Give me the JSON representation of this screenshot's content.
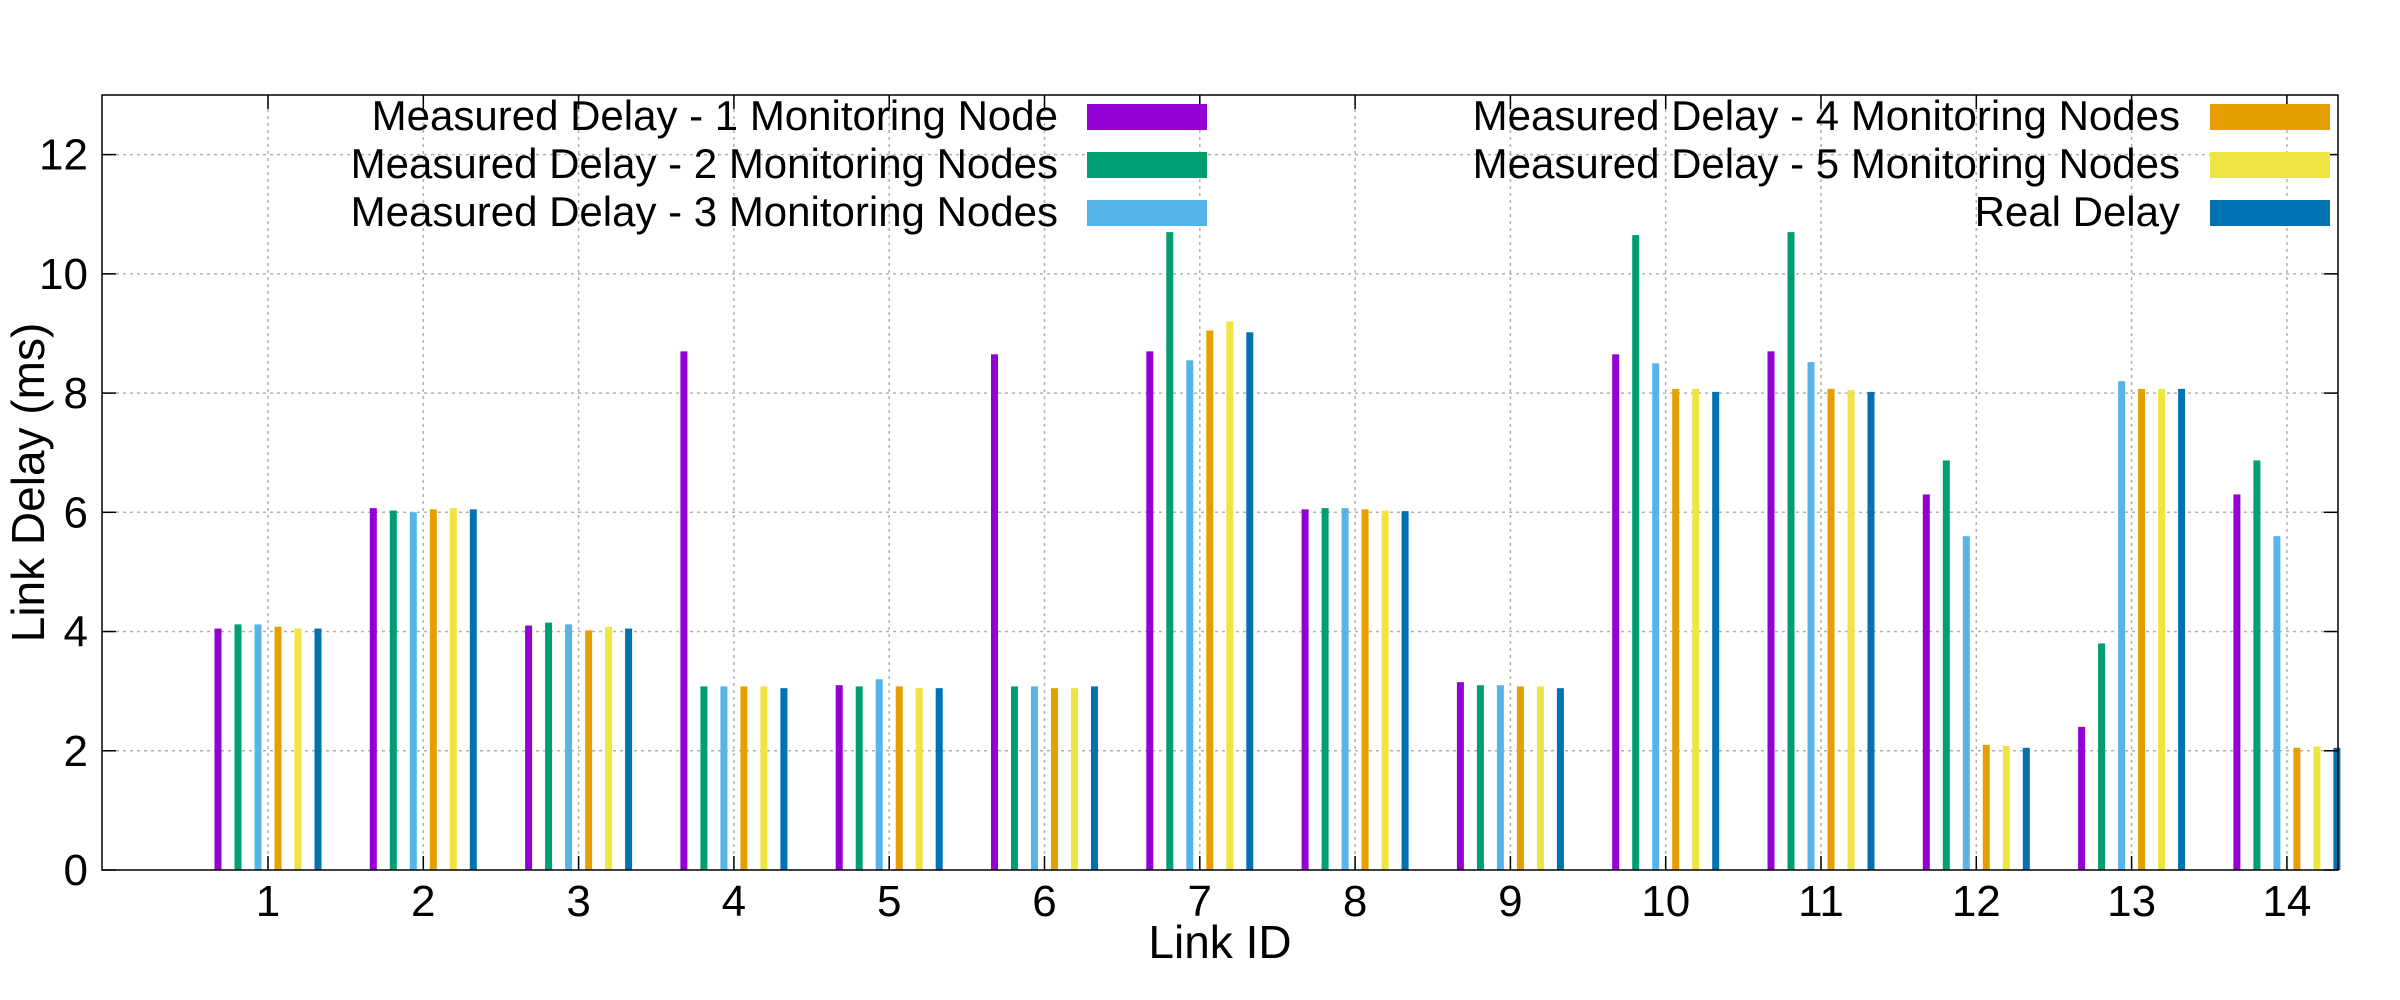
{
  "chart_data": {
    "type": "bar",
    "title": "",
    "xlabel": "Link ID",
    "ylabel": "Link Delay (ms)",
    "ylim": [
      0,
      13
    ],
    "yticks": [
      0,
      2,
      4,
      6,
      8,
      10,
      12
    ],
    "grid": true,
    "legend_placement": "top",
    "categories": [
      "1",
      "2",
      "3",
      "4",
      "5",
      "6",
      "7",
      "8",
      "9",
      "10",
      "11",
      "12",
      "13",
      "14"
    ],
    "series": [
      {
        "name": "Measured Delay - 1 Monitoring Node",
        "color": "#9400d3",
        "values": [
          4.05,
          6.07,
          4.1,
          8.7,
          3.1,
          8.65,
          8.7,
          6.05,
          3.15,
          8.65,
          8.7,
          6.3,
          2.4,
          6.3
        ]
      },
      {
        "name": "Measured Delay - 2 Monitoring Nodes",
        "color": "#009e73",
        "values": [
          4.12,
          6.03,
          4.15,
          3.08,
          3.08,
          3.08,
          10.7,
          6.07,
          3.1,
          10.65,
          10.7,
          6.87,
          3.8,
          6.87
        ]
      },
      {
        "name": "Measured Delay - 3 Monitoring Nodes",
        "color": "#56b4e9",
        "values": [
          4.12,
          6.0,
          4.12,
          3.08,
          3.2,
          3.08,
          8.55,
          6.07,
          3.1,
          8.5,
          8.52,
          5.6,
          8.2,
          5.6
        ]
      },
      {
        "name": "Measured Delay - 4 Monitoring Nodes",
        "color": "#e69f00",
        "values": [
          4.08,
          6.05,
          4.02,
          3.08,
          3.08,
          3.05,
          9.05,
          6.05,
          3.08,
          8.07,
          8.07,
          2.1,
          8.07,
          2.05
        ]
      },
      {
        "name": "Measured Delay - 5 Monitoring Nodes",
        "color": "#f0e442",
        "values": [
          4.05,
          6.07,
          4.08,
          3.08,
          3.05,
          3.05,
          9.2,
          6.03,
          3.08,
          8.07,
          8.05,
          2.08,
          8.07,
          2.07
        ]
      },
      {
        "name": "Real Delay",
        "color": "#0072b2",
        "values": [
          4.05,
          6.05,
          4.05,
          3.05,
          3.05,
          3.08,
          9.02,
          6.02,
          3.05,
          8.02,
          8.02,
          2.05,
          8.07,
          2.05
        ]
      }
    ]
  }
}
